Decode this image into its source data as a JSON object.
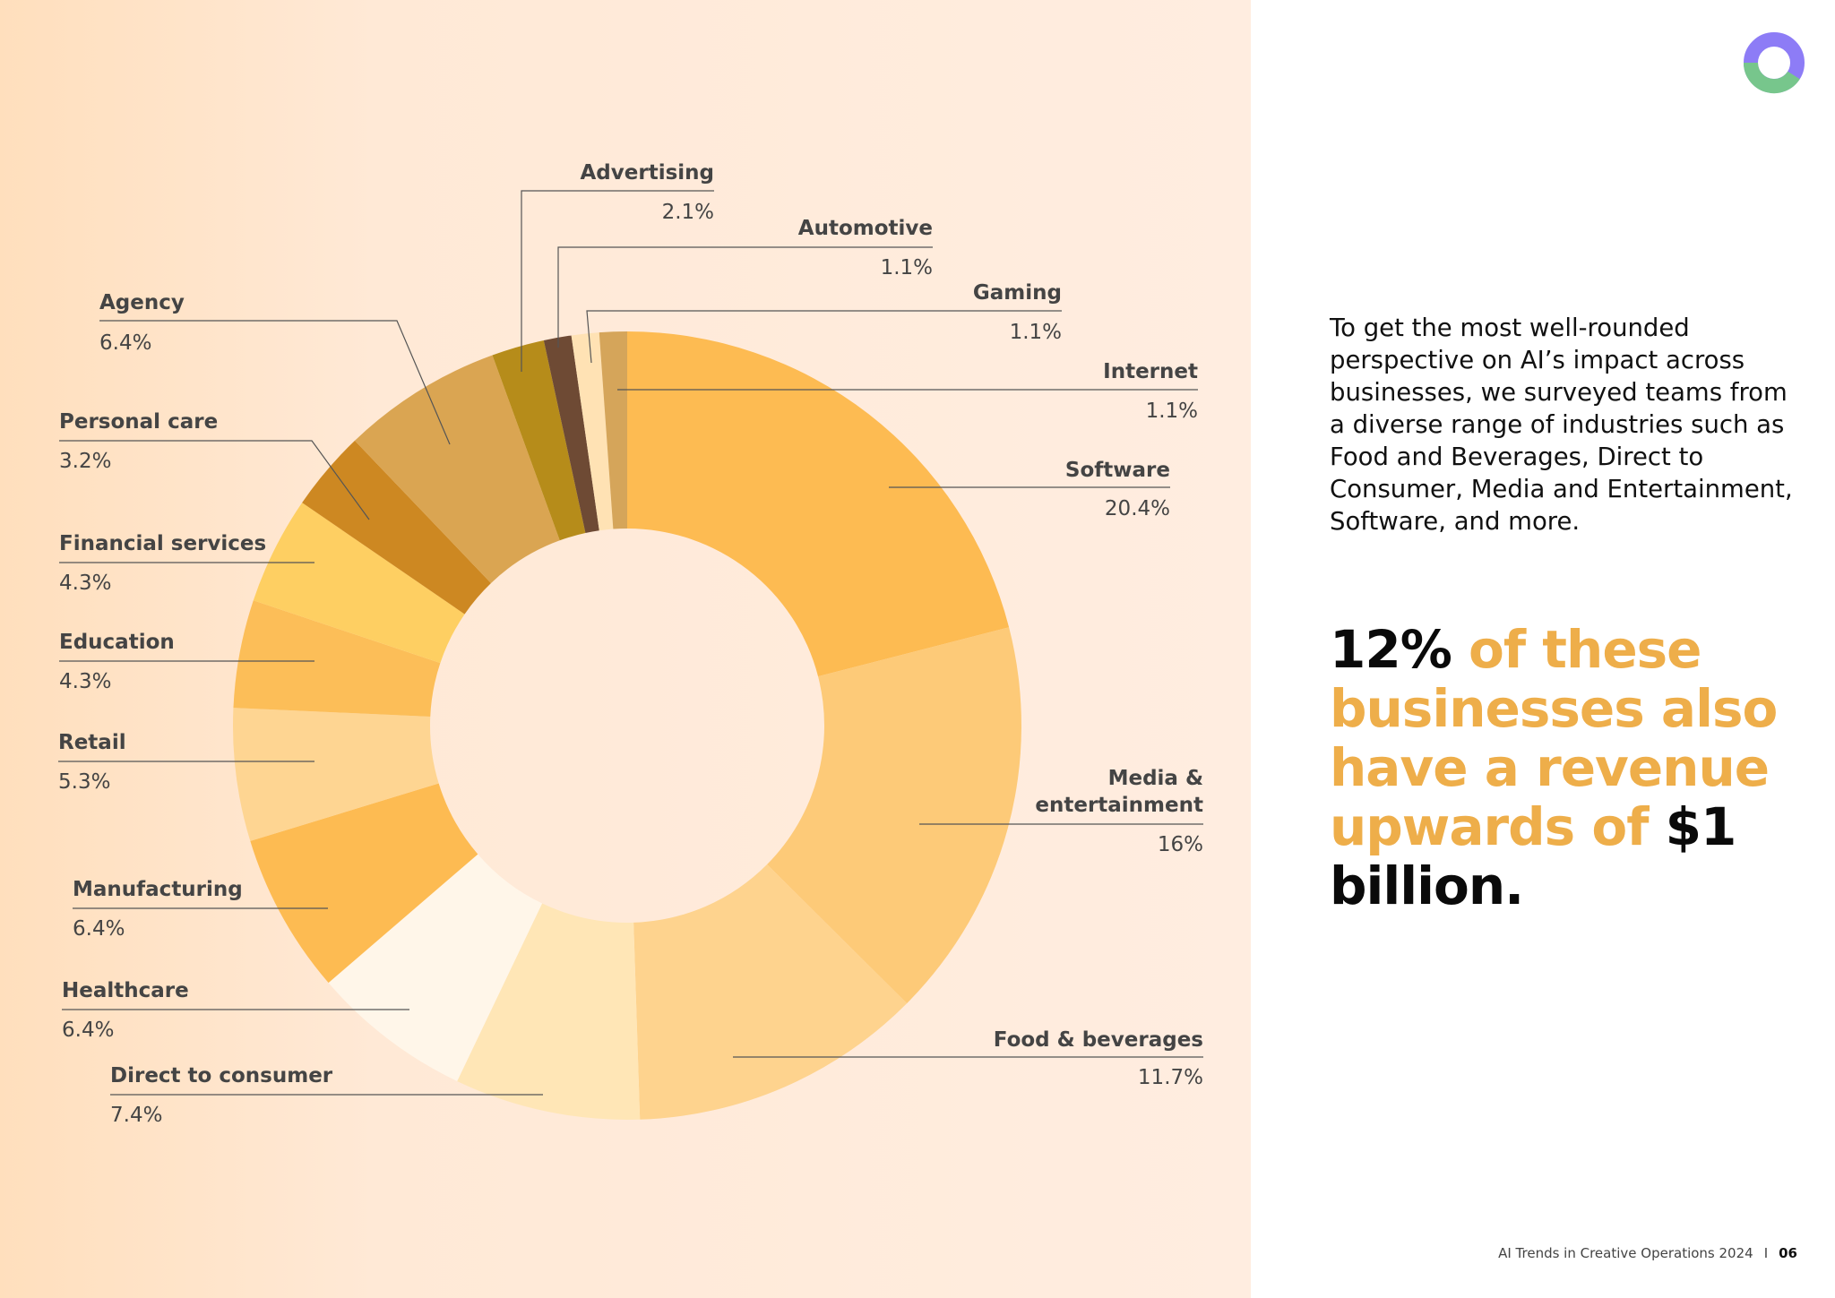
{
  "chart_data": {
    "type": "pie",
    "segments": [
      {
        "label": "Software",
        "value_label": "20.4%",
        "value": 20.4,
        "color": "#fdbb52"
      },
      {
        "label": "Media & entertainment",
        "label_lines": [
          "Media &",
          "entertainment"
        ],
        "value_label": "16%",
        "value": 16,
        "color": "#fdca78"
      },
      {
        "label": "Food & beverages",
        "value_label": "11.7%",
        "value": 11.7,
        "color": "#fed38e"
      },
      {
        "label": "Direct to consumer",
        "value_label": "7.4%",
        "value": 7.4,
        "color": "#ffe6b6"
      },
      {
        "label": "Healthcare",
        "value_label": "6.4%",
        "value": 6.4,
        "color": "#fff6e9"
      },
      {
        "label": "Manufacturing",
        "value_label": "6.4%",
        "value": 6.4,
        "color": "#fdbb52"
      },
      {
        "label": "Retail",
        "value_label": "5.3%",
        "value": 5.3,
        "color": "#fed592"
      },
      {
        "label": "Education",
        "value_label": "4.3%",
        "value": 4.3,
        "color": "#fcbe58"
      },
      {
        "label": "Financial services",
        "value_label": "4.3%",
        "value": 4.3,
        "color": "#fecf62"
      },
      {
        "label": "Personal care",
        "value_label": "3.2%",
        "value": 3.2,
        "color": "#cd8822"
      },
      {
        "label": "Agency",
        "value_label": "6.4%",
        "value": 6.4,
        "color": "#daa552"
      },
      {
        "label": "Advertising",
        "value_label": "2.1%",
        "value": 2.1,
        "color": "#b68c1a"
      },
      {
        "label": "Automotive",
        "value_label": "1.1%",
        "value": 1.1,
        "color": "#6e4a34"
      },
      {
        "label": "Gaming",
        "value_label": "1.1%",
        "value": 1.1,
        "color": "#ffe2b4"
      },
      {
        "label": "Internet",
        "value_label": "1.1%",
        "value": 1.1,
        "color": "#d5a55a"
      }
    ]
  },
  "intro_text": "To get the most well-rounded perspective on AI’s impact across businesses, we surveyed teams from a diverse range of industries such as Food and Beverages, Direct to Consumer, Media and Entertainment, Software, and more.",
  "headline": {
    "stat": "12%",
    "text_accent": "of these businesses also have a revenue upwards of",
    "text_end": "$1 billion."
  },
  "footer": {
    "title": "AI Trends in Creative Operations 2024",
    "separator": "I",
    "page_number": "06"
  },
  "colors": {
    "accent": "#eeae4a",
    "logo_purple": "#8d7cf6",
    "logo_green": "#77c68c"
  }
}
